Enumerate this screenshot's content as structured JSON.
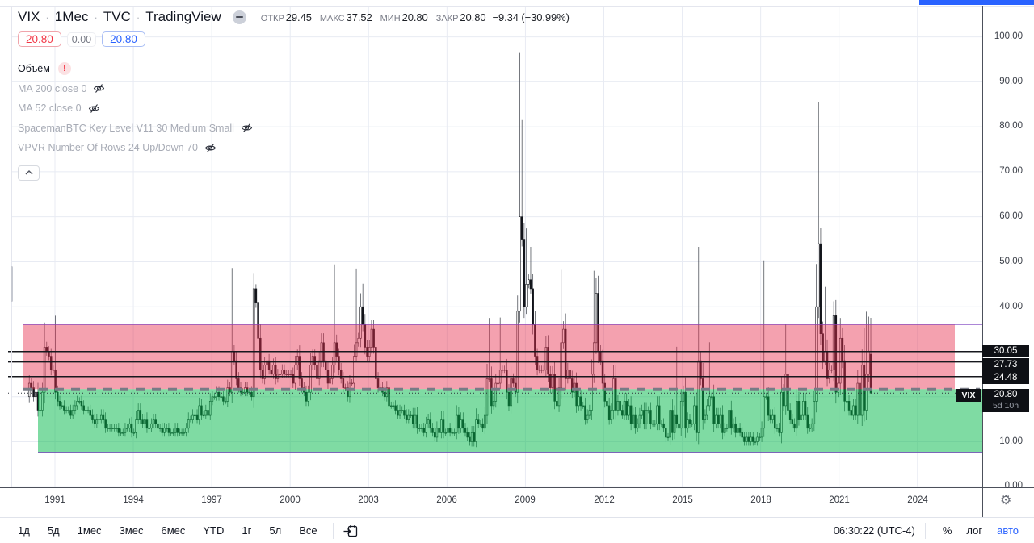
{
  "header": {
    "symbol": "VIX",
    "sep": "·",
    "timeframe": "1Мес",
    "exchange": "TVC",
    "provider": "TradingView",
    "ohlc": {
      "open_label": "ОТКР",
      "open": "29.45",
      "high_label": "МАКС",
      "high": "37.52",
      "low_label": "МИН",
      "low": "20.80",
      "close_label": "ЗАКР",
      "close": "20.80",
      "change": "−9.34 (−30.99%)"
    }
  },
  "badges": {
    "sell": "20.80",
    "spread": "0.00",
    "buy": "20.80"
  },
  "indicators": [
    {
      "label": "Объём",
      "error": "!"
    },
    {
      "label": "MA 200 close 0",
      "hidden": true
    },
    {
      "label": "MA 52 close 0",
      "hidden": true
    },
    {
      "label": "SpacemanBTC Key Level V11 30 Medium Small",
      "hidden": true
    },
    {
      "label": "VPVR Number Of Rows 24 Up/Down 70",
      "hidden": true
    }
  ],
  "price_axis": {
    "ticks": [
      "100.00",
      "90.00",
      "80.00",
      "70.00",
      "60.00",
      "50.00",
      "40.00",
      "10.00",
      "0.00"
    ],
    "tick_values": [
      100,
      90,
      80,
      70,
      60,
      50,
      40,
      10,
      0
    ],
    "level_labels": [
      "30.05",
      "27.73",
      "24.48"
    ],
    "last": {
      "symbol": "VIX",
      "price": "20.80",
      "countdown": "5d 10h"
    }
  },
  "time_axis": {
    "years": [
      "1991",
      "1994",
      "1997",
      "2000",
      "2003",
      "2006",
      "2009",
      "2012",
      "2015",
      "2018",
      "2021",
      "2024"
    ]
  },
  "toolbar": {
    "ranges": [
      "1д",
      "5д",
      "1мес",
      "3мес",
      "6мес",
      "YTD",
      "1г",
      "5л",
      "Все"
    ],
    "clock": "06:30:22 (UTC-4)",
    "percent": "%",
    "log": "лог",
    "auto": "авто"
  },
  "colors": {
    "accent_blue": "#2962FF",
    "down_red": "#F23645",
    "zone_red": "rgba(231,47,78,0.45)",
    "zone_green": "rgba(0,183,71,0.5)",
    "purple_line": "#7B3FBF",
    "black_line": "#16181E",
    "dashed_line": "#787B86",
    "grid": "#E8EBF3",
    "frame_dark": "#4C505B",
    "frame_light": "#E4E6EE",
    "label_bg": "#0E1015"
  },
  "chart_data": {
    "type": "candlestick",
    "symbol": "VIX",
    "interval": "1M",
    "start_year": 1990,
    "start_month": 1,
    "first_open": 20,
    "y_min": 0,
    "y_max": 106.8,
    "closes": [
      23,
      22,
      20,
      21,
      17,
      17,
      21,
      31,
      30,
      29,
      26,
      26,
      21,
      19,
      18,
      18,
      17,
      17,
      17,
      16,
      17,
      18,
      19,
      19,
      18,
      17,
      17,
      17,
      16,
      15,
      14,
      15,
      15,
      16,
      15,
      13,
      13,
      13,
      13,
      13,
      13,
      12,
      12,
      12,
      13,
      13,
      14,
      12,
      12,
      15,
      17,
      15,
      14,
      15,
      13,
      13,
      14,
      15,
      14,
      13,
      13,
      12,
      13,
      13,
      12,
      12,
      12,
      13,
      12,
      12,
      12,
      12,
      13,
      15,
      15,
      16,
      16,
      15,
      18,
      16,
      16,
      17,
      16,
      19,
      20,
      20,
      21,
      20,
      20,
      19,
      19,
      22,
      21,
      30,
      28,
      24,
      22,
      21,
      21,
      22,
      21,
      21,
      20,
      44,
      41,
      33,
      26,
      24,
      27,
      28,
      26,
      25,
      27,
      24,
      25,
      25,
      26,
      25,
      25,
      25,
      25,
      23,
      27,
      29,
      24,
      22,
      21,
      19,
      21,
      27,
      29,
      27,
      24,
      28,
      32,
      28,
      26,
      23,
      24,
      27,
      32,
      29,
      26,
      24,
      22,
      22,
      20,
      23,
      23,
      29,
      32,
      33,
      40,
      36,
      31,
      29,
      31,
      35,
      31,
      24,
      22,
      22,
      21,
      20,
      22,
      18,
      18,
      18,
      17,
      16,
      17,
      17,
      16,
      15,
      16,
      16,
      14,
      16,
      13,
      13,
      13,
      12,
      14,
      15,
      13,
      12,
      11,
      13,
      12,
      15,
      12,
      12,
      13,
      12,
      12,
      12,
      16,
      13,
      15,
      13,
      12,
      11,
      10,
      12,
      10,
      15,
      14,
      14,
      13,
      16,
      24,
      24,
      18,
      19,
      23,
      23,
      26,
      26,
      26,
      21,
      18,
      24,
      23,
      21,
      39,
      60,
      55,
      40,
      45,
      46,
      44,
      36,
      29,
      26,
      26,
      26,
      26,
      31,
      25,
      22,
      25,
      19,
      18,
      22,
      32,
      35,
      24,
      26,
      24,
      21,
      23,
      18,
      20,
      18,
      18,
      15,
      16,
      17,
      25,
      32,
      43,
      30,
      28,
      23,
      19,
      18,
      15,
      17,
      24,
      17,
      19,
      17,
      16,
      19,
      16,
      18,
      14,
      16,
      13,
      14,
      16,
      17,
      14,
      17,
      17,
      14,
      14,
      14,
      18,
      14,
      14,
      13,
      11,
      11,
      17,
      12,
      16,
      14,
      13,
      19,
      21,
      13,
      15,
      14,
      14,
      18,
      12,
      28,
      24,
      15,
      16,
      18,
      20,
      20,
      14,
      16,
      14,
      16,
      12,
      13,
      13,
      17,
      13,
      14,
      12,
      13,
      12,
      11,
      10,
      11,
      10,
      11,
      10,
      10,
      11,
      11,
      13,
      20,
      20,
      16,
      15,
      16,
      13,
      13,
      12,
      21,
      18,
      25,
      17,
      15,
      14,
      13,
      19,
      15,
      16,
      19,
      16,
      13,
      13,
      14,
      19,
      40,
      54,
      34,
      28,
      30,
      24,
      26,
      26,
      38,
      21,
      23,
      33,
      28,
      19,
      19,
      17,
      16,
      18,
      16,
      23,
      16,
      27,
      17,
      25,
      30.14,
      20.8
    ],
    "spike_highs": {
      "7": 36.5,
      "12": 38,
      "93": 48.6,
      "104": 45,
      "105": 49.5,
      "140": 49.4,
      "150": 48.5,
      "153": 45.1,
      "211": 37.5,
      "216": 37.6,
      "225": 96.4,
      "226": 81.5,
      "228": 57.4,
      "230": 53.3,
      "244": 48.2,
      "259": 48,
      "261": 46.9,
      "297": 31.1,
      "307": 53.3,
      "312": 32.1,
      "337": 50.3,
      "347": 36.2,
      "361": 49.5,
      "362": 85.5,
      "365": 44.4,
      "369": 41.2,
      "372": 37.5,
      "383": 35.3,
      "384": 38.9,
      "385": 37.8,
      "386": 37.52
    },
    "last_candle": {
      "open": 29.45,
      "high": 37.52,
      "low": 20.8,
      "close": 20.8
    },
    "levels": {
      "black_lines": [
        30.05,
        27.73,
        24.48
      ],
      "dashed_line": 21.7,
      "purple_top": 36.1,
      "purple_bottom": 7.6,
      "last_price": 20.8
    },
    "zones": {
      "red": {
        "top": 36.1,
        "bottom": 21.7
      },
      "green": {
        "top": 21.7,
        "bottom": 7.6
      }
    }
  }
}
